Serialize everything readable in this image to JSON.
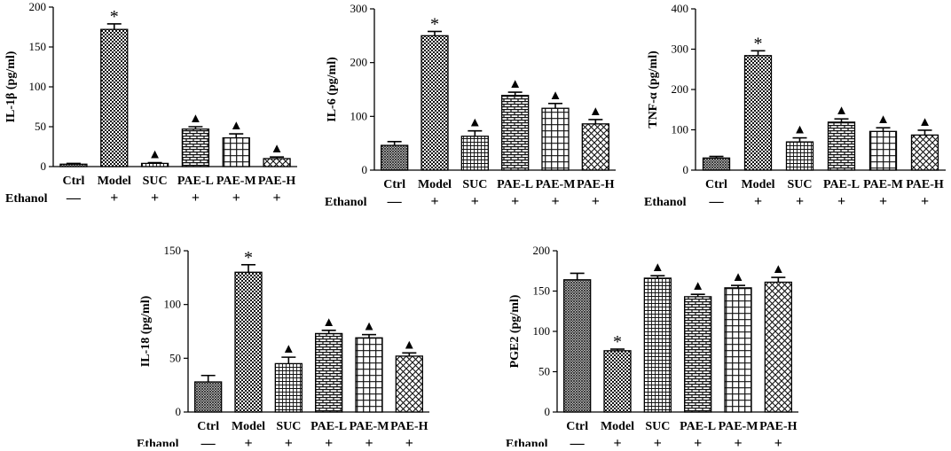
{
  "group_label": "Ethanol",
  "chart_data": [
    {
      "type": "bar",
      "id": "il1b",
      "ylabel": "IL-1β (pg/ml)",
      "ylim": [
        0,
        200
      ],
      "yticks": [
        0,
        50,
        100,
        150,
        200
      ],
      "categories": [
        "Ctrl",
        "Model",
        "SUC",
        "PAE-L",
        "PAE-M",
        "PAE-H"
      ],
      "values": [
        3,
        172,
        4,
        47,
        36,
        10
      ],
      "errors": [
        1,
        7,
        1,
        3,
        5,
        2
      ],
      "markers": [
        "",
        "*",
        "▲",
        "▲",
        "▲",
        "▲"
      ],
      "ethanol": [
        "—",
        "+",
        "+",
        "+",
        "+",
        "+"
      ]
    },
    {
      "type": "bar",
      "id": "il6",
      "ylabel": "IL-6 (pg/ml)",
      "ylim": [
        0,
        300
      ],
      "yticks": [
        0,
        100,
        200,
        300
      ],
      "categories": [
        "Ctrl",
        "Model",
        "SUC",
        "PAE-L",
        "PAE-M",
        "PAE-H"
      ],
      "values": [
        46,
        250,
        63,
        139,
        115,
        86
      ],
      "errors": [
        7,
        8,
        10,
        6,
        9,
        8
      ],
      "markers": [
        "",
        "*",
        "▲",
        "▲",
        "▲",
        "▲"
      ],
      "ethanol": [
        "—",
        "+",
        "+",
        "+",
        "+",
        "+"
      ]
    },
    {
      "type": "bar",
      "id": "tnfa",
      "ylabel": "TNF-α (pg/ml)",
      "ylim": [
        0,
        400
      ],
      "yticks": [
        0,
        100,
        200,
        300,
        400
      ],
      "categories": [
        "Ctrl",
        "Model",
        "SUC",
        "PAE-L",
        "PAE-M",
        "PAE-H"
      ],
      "values": [
        30,
        284,
        70,
        119,
        96,
        87
      ],
      "errors": [
        4,
        12,
        10,
        8,
        9,
        12
      ],
      "markers": [
        "",
        "*",
        "▲",
        "▲",
        "▲",
        "▲"
      ],
      "ethanol": [
        "—",
        "+",
        "+",
        "+",
        "+",
        "+"
      ]
    },
    {
      "type": "bar",
      "id": "il18",
      "ylabel": "IL-18 (pg/ml)",
      "ylim": [
        0,
        150
      ],
      "yticks": [
        0,
        50,
        100,
        150
      ],
      "categories": [
        "Ctrl",
        "Model",
        "SUC",
        "PAE-L",
        "PAE-M",
        "PAE-H"
      ],
      "values": [
        28,
        130,
        45,
        73,
        69,
        52
      ],
      "errors": [
        6,
        7,
        6,
        3,
        3,
        3
      ],
      "markers": [
        "",
        "*",
        "▲",
        "▲",
        "▲",
        "▲"
      ],
      "ethanol": [
        "—",
        "+",
        "+",
        "+",
        "+",
        "+"
      ]
    },
    {
      "type": "bar",
      "id": "pge2",
      "ylabel": "PGE2 (pg/ml)",
      "ylim": [
        0,
        200
      ],
      "yticks": [
        0,
        50,
        100,
        150,
        200
      ],
      "categories": [
        "Ctrl",
        "Model",
        "SUC",
        "PAE-L",
        "PAE-M",
        "PAE-H"
      ],
      "values": [
        164,
        76,
        166,
        143,
        154,
        161
      ],
      "errors": [
        8,
        2,
        3,
        3,
        3,
        6
      ],
      "markers": [
        "",
        "*",
        "▲",
        "▲",
        "▲",
        "▲"
      ],
      "ethanol": [
        "—",
        "+",
        "+",
        "+",
        "+",
        "+"
      ]
    }
  ]
}
